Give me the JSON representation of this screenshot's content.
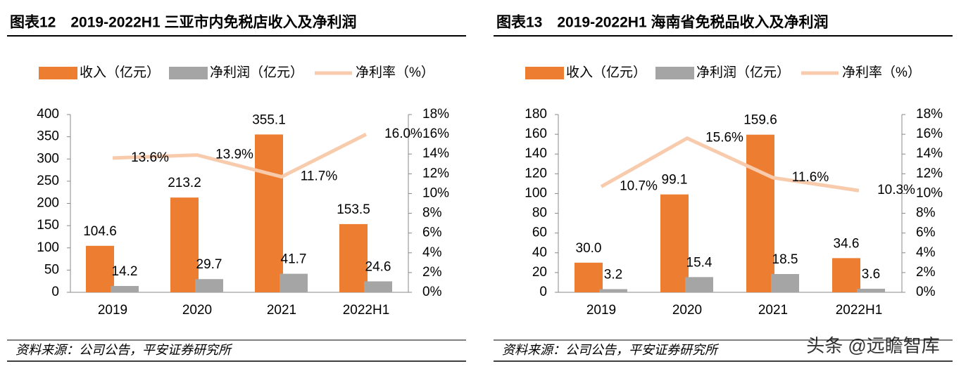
{
  "chart_data": [
    {
      "type": "bar",
      "title": "图表12　2019-2022H1 三亚市内免税店收入及净利润",
      "source": "资料来源：公司公告，平安证券研究所",
      "categories": [
        "2019",
        "2020",
        "2021",
        "2022H1"
      ],
      "ylim": [
        0,
        400
      ],
      "yticks": [
        0,
        50,
        100,
        150,
        200,
        250,
        300,
        350,
        400
      ],
      "y2lim": [
        0,
        18
      ],
      "y2ticks": [
        {
          "value": 0,
          "label": "0%"
        },
        {
          "value": 2,
          "label": "2%"
        },
        {
          "value": 4,
          "label": "4%"
        },
        {
          "value": 6,
          "label": "6%"
        },
        {
          "value": 8,
          "label": "8%"
        },
        {
          "value": 10,
          "label": "10%"
        },
        {
          "value": 12,
          "label": "12%"
        },
        {
          "value": 14,
          "label": "14%"
        },
        {
          "value": 16,
          "label": "16%"
        },
        {
          "value": 18,
          "label": "18%"
        }
      ],
      "series": [
        {
          "name": "收入（亿元）",
          "color": "#ED7D31",
          "values": [
            104.6,
            213.2,
            355.1,
            153.5
          ],
          "value_labels": [
            "104.6",
            "213.2",
            "355.1",
            "153.5"
          ]
        },
        {
          "name": "净利润（亿元）",
          "color": "#A5A5A5",
          "values": [
            14.2,
            29.7,
            41.7,
            24.6
          ],
          "value_labels": [
            "14.2",
            "29.7",
            "41.7",
            "24.6"
          ]
        },
        {
          "name": "净利率（%）",
          "color": "#F8CBAD",
          "axis": "y2",
          "type": "line",
          "values": [
            13.6,
            13.9,
            11.7,
            16.0
          ],
          "value_labels": [
            "13.6%",
            "13.9%",
            "11.7%",
            "16.0%"
          ]
        }
      ]
    },
    {
      "type": "bar",
      "title": "图表13　2019-2022H1 海南省免税品收入及净利润",
      "source": "资料来源：公司公告，平安证券研究所",
      "categories": [
        "2019",
        "2020",
        "2021",
        "2022H1"
      ],
      "ylim": [
        0,
        180
      ],
      "yticks": [
        0,
        20,
        40,
        60,
        80,
        100,
        120,
        140,
        160,
        180
      ],
      "y2lim": [
        0,
        18
      ],
      "y2ticks": [
        {
          "value": 0,
          "label": "0%"
        },
        {
          "value": 2,
          "label": "2%"
        },
        {
          "value": 4,
          "label": "4%"
        },
        {
          "value": 6,
          "label": "6%"
        },
        {
          "value": 8,
          "label": "8%"
        },
        {
          "value": 10,
          "label": "10%"
        },
        {
          "value": 12,
          "label": "12%"
        },
        {
          "value": 14,
          "label": "14%"
        },
        {
          "value": 16,
          "label": "16%"
        },
        {
          "value": 18,
          "label": "18%"
        }
      ],
      "series": [
        {
          "name": "收入（亿元）",
          "color": "#ED7D31",
          "values": [
            30.0,
            99.1,
            159.6,
            34.6
          ],
          "value_labels": [
            "30.0",
            "99.1",
            "159.6",
            "34.6"
          ]
        },
        {
          "name": "净利润（亿元）",
          "color": "#A5A5A5",
          "values": [
            3.2,
            15.4,
            18.5,
            3.6
          ],
          "value_labels": [
            "3.2",
            "15.4",
            "18.5",
            "3.6"
          ]
        },
        {
          "name": "净利率（%）",
          "color": "#F8CBAD",
          "axis": "y2",
          "type": "line",
          "values": [
            10.7,
            15.6,
            11.6,
            10.3
          ],
          "value_labels": [
            "10.7%",
            "15.6%",
            "11.6%",
            "10.3%"
          ]
        }
      ]
    }
  ],
  "watermark": "头条 @远瞻智库"
}
